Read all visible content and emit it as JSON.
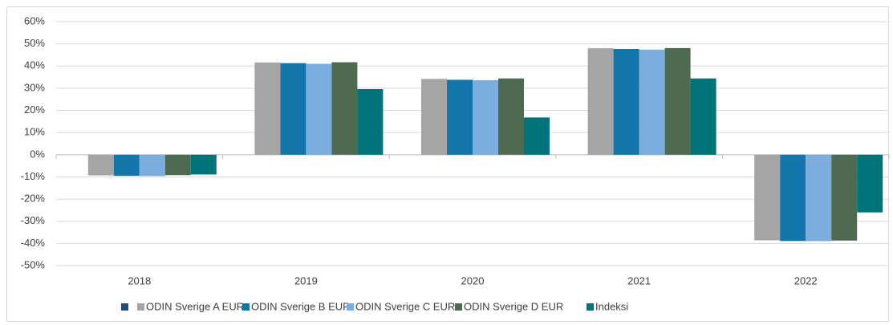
{
  "chart_data": {
    "type": "bar",
    "categories": [
      "2018",
      "2019",
      "2020",
      "2021",
      "2022"
    ],
    "series": [
      {
        "name": "ODIN Sverige A EUR",
        "color": "#a5a5a5",
        "values": [
          -9.3,
          41.6,
          34.2,
          48.0,
          -38.6
        ]
      },
      {
        "name": "ODIN Sverige B EUR",
        "color": "#1276aa",
        "values": [
          -9.5,
          41.3,
          33.8,
          47.7,
          -38.9
        ]
      },
      {
        "name": "ODIN Sverige C EUR",
        "color": "#7badde",
        "values": [
          -9.6,
          41.0,
          33.6,
          47.4,
          -39.0
        ]
      },
      {
        "name": "ODIN Sverige D EUR",
        "color": "#4e6b52",
        "values": [
          -9.2,
          41.7,
          34.4,
          48.1,
          -38.7
        ]
      },
      {
        "name": "Indeksi",
        "color": "#007479",
        "values": [
          -8.9,
          29.6,
          16.8,
          34.4,
          -26.0
        ]
      }
    ],
    "ylim": [
      -50,
      60
    ],
    "yticks": [
      {
        "value": -50,
        "label": "-50%"
      },
      {
        "value": -40,
        "label": "-40%"
      },
      {
        "value": -30,
        "label": "-30%"
      },
      {
        "value": -20,
        "label": "-20%"
      },
      {
        "value": -10,
        "label": "-10%"
      },
      {
        "value": 0,
        "label": "0%"
      },
      {
        "value": 10,
        "label": "10%"
      },
      {
        "value": 20,
        "label": "20%"
      },
      {
        "value": 30,
        "label": "30%"
      },
      {
        "value": 40,
        "label": "40%"
      },
      {
        "value": 50,
        "label": "50%"
      },
      {
        "value": 60,
        "label": "60%"
      }
    ],
    "grid": true,
    "legend": "bottom"
  }
}
